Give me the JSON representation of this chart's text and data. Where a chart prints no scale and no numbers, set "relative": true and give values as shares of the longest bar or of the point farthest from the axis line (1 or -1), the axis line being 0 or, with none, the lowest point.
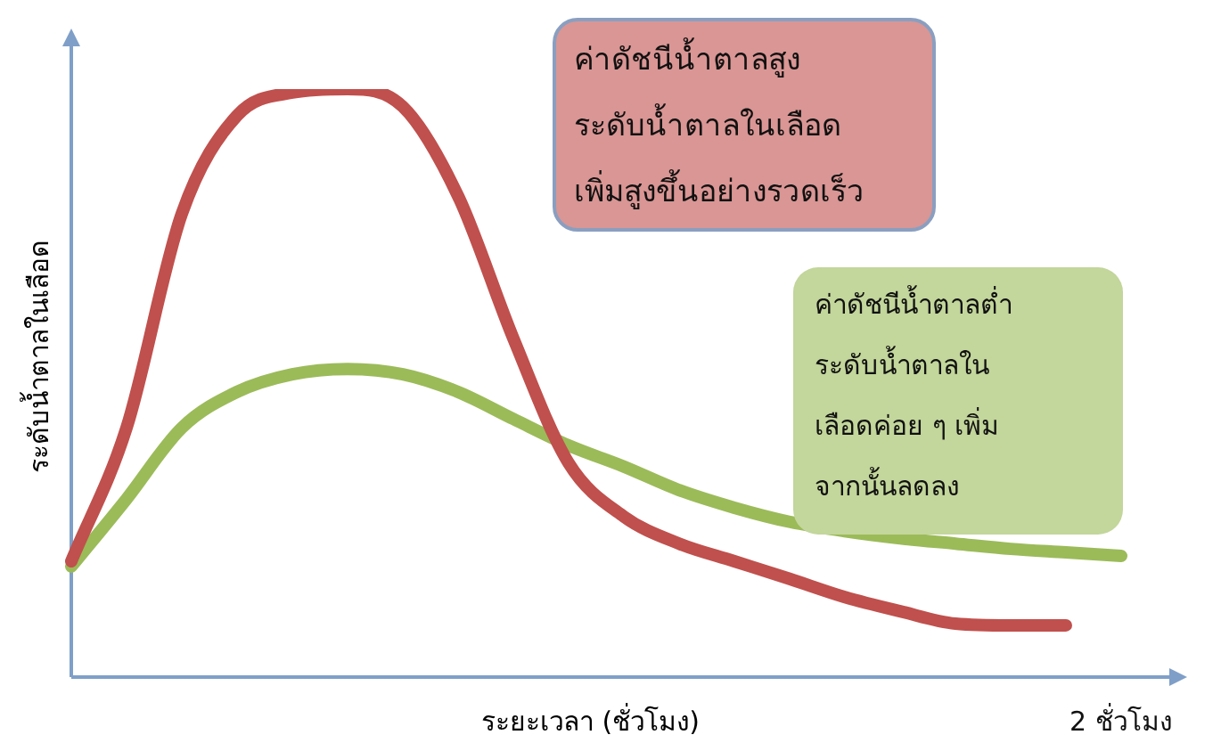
{
  "chart_data": {
    "type": "line",
    "relative": true,
    "marker": "none",
    "legend": false,
    "xlabel": "ระยะเวลา (ชั่วโมง)",
    "ylabel": "ระดับน้ำตาลในเลือด",
    "categories": [
      null,
      null,
      null,
      null,
      null,
      null,
      null,
      null,
      null,
      null,
      null,
      null,
      null,
      null,
      null,
      null,
      null,
      null,
      null,
      null
    ],
    "series": [
      {
        "color": "#c0504d",
        "values": [
          0.197,
          0.424,
          0.788,
          0.955,
          0.994,
          1,
          0.97,
          0.818,
          0.576,
          0.364,
          0.273,
          0.227,
          0.197,
          0.167,
          0.136,
          0.112,
          0.091,
          0.088,
          0.088,
          null
        ]
      },
      {
        "color": "#9bbb59",
        "values": [
          0.188,
          0.303,
          0.424,
          0.485,
          0.515,
          0.524,
          0.515,
          0.485,
          0.439,
          0.394,
          0.358,
          0.318,
          0.288,
          0.264,
          0.248,
          0.236,
          0.227,
          0.218,
          0.212,
          0.206
        ]
      }
    ],
    "annotations": [
      "ค่าดัชนีน้ำตาลสูง\nระดับน้ำตาลในเลือด\nเพิ่มสูงขึ้นอย่างรวดเร็ว",
      "ค่าดัชนีน้ำตาลต่ำ\nระดับน้ำตาลใน\nเลือดค่อย ๆ เพิ่ม\nจากนั้นลดลง",
      "2 ชั่วโมง"
    ]
  }
}
